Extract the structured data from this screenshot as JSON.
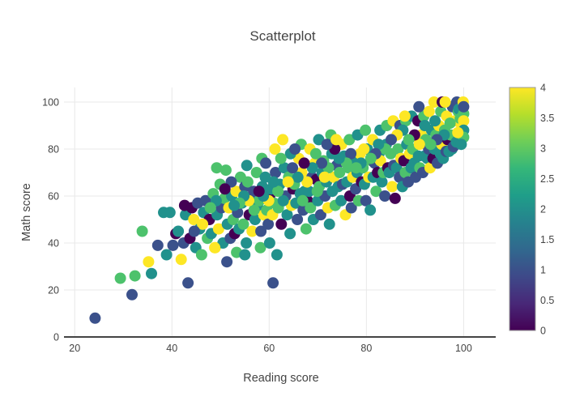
{
  "chart_data": {
    "type": "scatter",
    "title": "Scatterplot",
    "xlabel": "Reading score",
    "ylabel": "Math score",
    "xlim": [
      17.8,
      106.6
    ],
    "ylim": [
      0,
      106.2
    ],
    "xticks": [
      20,
      40,
      60,
      80,
      100
    ],
    "yticks": [
      0,
      20,
      40,
      60,
      80,
      100
    ],
    "grid": true,
    "grid_color": "#e8e8e8",
    "axis_line_color": "#444444",
    "marker_size_px": 14,
    "category_colors": [
      "#440154",
      "#3b518b",
      "#21918c",
      "#4dc26c",
      "#fde725"
    ],
    "colorbar": {
      "min": 0,
      "max": 4,
      "ticks": [
        0,
        0.5,
        1,
        1.5,
        2,
        2.5,
        3,
        3.5,
        4
      ],
      "tick_labels": [
        "0",
        "0.5",
        "1",
        "1.5",
        "2",
        "2.5",
        "3",
        "3.5",
        "4"
      ],
      "colorscale": "Viridis",
      "stops": [
        {
          "v": 0,
          "c": "#440154"
        },
        {
          "v": 0.111,
          "c": "#482878"
        },
        {
          "v": 0.222,
          "c": "#3e4989"
        },
        {
          "v": 0.333,
          "c": "#31688e"
        },
        {
          "v": 0.444,
          "c": "#26828e"
        },
        {
          "v": 0.556,
          "c": "#1f9e89"
        },
        {
          "v": 0.667,
          "c": "#35b779"
        },
        {
          "v": 0.778,
          "c": "#6ece58"
        },
        {
          "v": 0.889,
          "c": "#b5de2b"
        },
        {
          "v": 1,
          "c": "#fde725"
        }
      ]
    },
    "points": [
      [
        24.2,
        8,
        1
      ],
      [
        29.4,
        25,
        3
      ],
      [
        31.8,
        18,
        1
      ],
      [
        32.4,
        26,
        3
      ],
      [
        33.9,
        45,
        3
      ],
      [
        35.2,
        32,
        4
      ],
      [
        35.8,
        27,
        2
      ],
      [
        37.1,
        39,
        1
      ],
      [
        38.3,
        53,
        2
      ],
      [
        38.9,
        35,
        2
      ],
      [
        39.6,
        53,
        2
      ],
      [
        40.2,
        39,
        1
      ],
      [
        40.8,
        44,
        0
      ],
      [
        41.3,
        45,
        2
      ],
      [
        41.9,
        33,
        4
      ],
      [
        42.4,
        40,
        1
      ],
      [
        42.8,
        52,
        2
      ],
      [
        43.3,
        23,
        1
      ],
      [
        43.7,
        42,
        0
      ],
      [
        42.6,
        56,
        0
      ],
      [
        44.1,
        55,
        0
      ],
      [
        44.5,
        50,
        4
      ],
      [
        44.9,
        38,
        2
      ],
      [
        45.3,
        57,
        1
      ],
      [
        45.7,
        46,
        2
      ],
      [
        46.1,
        35,
        3
      ],
      [
        46.5,
        53,
        2
      ],
      [
        46.9,
        58,
        1
      ],
      [
        47.3,
        42,
        3
      ],
      [
        47.7,
        50,
        0
      ],
      [
        48.1,
        44,
        2
      ],
      [
        48.5,
        61,
        3
      ],
      [
        48.9,
        38,
        4
      ],
      [
        49.3,
        52,
        2
      ],
      [
        49.6,
        46,
        4
      ],
      [
        49.9,
        65,
        3
      ],
      [
        50.2,
        55,
        1
      ],
      [
        50.5,
        40,
        2
      ],
      [
        50.8,
        59,
        3
      ],
      [
        49.2,
        72,
        3
      ],
      [
        51.1,
        71,
        3
      ],
      [
        51.3,
        32,
        1
      ],
      [
        51.4,
        48,
        2
      ],
      [
        51.7,
        55,
        4
      ],
      [
        52.0,
        42,
        1
      ],
      [
        52.3,
        60,
        2
      ],
      [
        52.6,
        50,
        3
      ],
      [
        52.9,
        44,
        0
      ],
      [
        53.2,
        62,
        4
      ],
      [
        53.3,
        36,
        3
      ],
      [
        53.5,
        53,
        1
      ],
      [
        53.8,
        46,
        2
      ],
      [
        54.1,
        68,
        3
      ],
      [
        54.4,
        57,
        2
      ],
      [
        54.7,
        48,
        3
      ],
      [
        55.0,
        35,
        2
      ],
      [
        55.0,
        64,
        1
      ],
      [
        55.3,
        40,
        2
      ],
      [
        55.6,
        66,
        3
      ],
      [
        55.9,
        52,
        0
      ],
      [
        56.2,
        58,
        2
      ],
      [
        56.5,
        45,
        4
      ],
      [
        56.8,
        62,
        1
      ],
      [
        57.1,
        50,
        2
      ],
      [
        57.4,
        70,
        3
      ],
      [
        57.7,
        55,
        2
      ],
      [
        58.0,
        58,
        3
      ],
      [
        58.2,
        38,
        3
      ],
      [
        58.3,
        45,
        1
      ],
      [
        58.6,
        64,
        2
      ],
      [
        58.9,
        52,
        4
      ],
      [
        59.2,
        68,
        2
      ],
      [
        59.5,
        54,
        3
      ],
      [
        59.8,
        48,
        1
      ],
      [
        60.1,
        60,
        0
      ],
      [
        60.4,
        63,
        2
      ],
      [
        60.7,
        52,
        4
      ],
      [
        61.0,
        57,
        3
      ],
      [
        61.3,
        70,
        1
      ],
      [
        61.6,
        35,
        2
      ],
      [
        61.9,
        55,
        3
      ],
      [
        62.2,
        65,
        2
      ],
      [
        62.5,
        48,
        0
      ],
      [
        62.8,
        84,
        4
      ],
      [
        63.1,
        72,
        2
      ],
      [
        63.4,
        60,
        1
      ],
      [
        63.7,
        52,
        2
      ],
      [
        64.0,
        68,
        3
      ],
      [
        64.3,
        44,
        2
      ],
      [
        64.6,
        56,
        4
      ],
      [
        64.9,
        63,
        0
      ],
      [
        65.2,
        65,
        3
      ],
      [
        65.5,
        57,
        2
      ],
      [
        65.8,
        50,
        1
      ],
      [
        66.1,
        76,
        4
      ],
      [
        66.4,
        61,
        2
      ],
      [
        66.7,
        70,
        4
      ],
      [
        67.0,
        54,
        1
      ],
      [
        67.3,
        62,
        2
      ],
      [
        67.6,
        46,
        3
      ],
      [
        67.9,
        58,
        0
      ],
      [
        68.2,
        62,
        2
      ],
      [
        68.5,
        55,
        3
      ],
      [
        68.8,
        68,
        1
      ],
      [
        69.1,
        50,
        2
      ],
      [
        69.4,
        74,
        4
      ],
      [
        69.7,
        67,
        0
      ],
      [
        70.0,
        58,
        2
      ],
      [
        70.3,
        64,
        3
      ],
      [
        70.6,
        52,
        1
      ],
      [
        70.9,
        70,
        2
      ],
      [
        71.2,
        75,
        3
      ],
      [
        71.5,
        60,
        1
      ],
      [
        71.8,
        66,
        2
      ],
      [
        72.1,
        55,
        4
      ],
      [
        72.4,
        48,
        2
      ],
      [
        72.7,
        86,
        3
      ],
      [
        73.0,
        62,
        2
      ],
      [
        73.3,
        68,
        4
      ],
      [
        73.6,
        56,
        3
      ],
      [
        73.9,
        73,
        1
      ],
      [
        74.2,
        64,
        2
      ],
      [
        74.5,
        70,
        3
      ],
      [
        74.8,
        58,
        2
      ],
      [
        75.1,
        65,
        1
      ],
      [
        75.4,
        77,
        2
      ],
      [
        75.7,
        52,
        4
      ],
      [
        76.0,
        66,
        2
      ],
      [
        76.3,
        72,
        3
      ],
      [
        76.6,
        60,
        0
      ],
      [
        76.9,
        55,
        1
      ],
      [
        77.2,
        68,
        4
      ],
      [
        77.5,
        75,
        2
      ],
      [
        77.8,
        63,
        1
      ],
      [
        78.1,
        70,
        2
      ],
      [
        78.4,
        58,
        3
      ],
      [
        78.7,
        78,
        4
      ],
      [
        79.0,
        66,
        0
      ],
      [
        79.3,
        72,
        3
      ],
      [
        79.6,
        65,
        2
      ],
      [
        79.9,
        58,
        1
      ],
      [
        80.2,
        80,
        2
      ],
      [
        80.5,
        68,
        4
      ],
      [
        80.8,
        54,
        2
      ],
      [
        81.1,
        75,
        3
      ],
      [
        81.4,
        68,
        2
      ],
      [
        81.7,
        74,
        1
      ],
      [
        82.0,
        62,
        3
      ],
      [
        82.3,
        70,
        0
      ],
      [
        82.6,
        78,
        2
      ],
      [
        82.9,
        75,
        4
      ],
      [
        83.2,
        66,
        2
      ],
      [
        83.5,
        70,
        3
      ],
      [
        83.8,
        60,
        1
      ],
      [
        84.1,
        82,
        2
      ],
      [
        84.4,
        72,
        0
      ],
      [
        84.7,
        70,
        2
      ],
      [
        85.0,
        78,
        3
      ],
      [
        85.3,
        64,
        4
      ],
      [
        85.6,
        73,
        1
      ],
      [
        85.9,
        59,
        0
      ],
      [
        86.2,
        72,
        2
      ],
      [
        86.5,
        80,
        3
      ],
      [
        86.8,
        68,
        1
      ],
      [
        87.1,
        76,
        4
      ],
      [
        87.4,
        64,
        2
      ],
      [
        87.7,
        75,
        0
      ],
      [
        88.0,
        70,
        3
      ],
      [
        88.3,
        82,
        2
      ],
      [
        88.6,
        66,
        1
      ],
      [
        88.9,
        78,
        4
      ],
      [
        89.2,
        72,
        2
      ],
      [
        89.5,
        80,
        3
      ],
      [
        89.8,
        74,
        2
      ],
      [
        90.1,
        68,
        1
      ],
      [
        90.4,
        85,
        4
      ],
      [
        90.7,
        77,
        2
      ],
      [
        91.0,
        72,
        3
      ],
      [
        91.3,
        86,
        4
      ],
      [
        91.6,
        70,
        1
      ],
      [
        91.9,
        77,
        2
      ],
      [
        92.2,
        84,
        3
      ],
      [
        92.5,
        76,
        2
      ],
      [
        92.8,
        80,
        1
      ],
      [
        93.1,
        72,
        4
      ],
      [
        93.4,
        88,
        2
      ],
      [
        93.7,
        76,
        0
      ],
      [
        94.0,
        80,
        2
      ],
      [
        94.3,
        86,
        3
      ],
      [
        94.6,
        74,
        1
      ],
      [
        94.9,
        90,
        4
      ],
      [
        95.2,
        78,
        2
      ],
      [
        95.5,
        82,
        4
      ],
      [
        95.8,
        76,
        2
      ],
      [
        96.1,
        88,
        3
      ],
      [
        96.4,
        79,
        1
      ],
      [
        96.7,
        84,
        0
      ],
      [
        97.0,
        79,
        2
      ],
      [
        97.3,
        86,
        3
      ],
      [
        97.6,
        80,
        2
      ],
      [
        97.9,
        81,
        1
      ],
      [
        98.2,
        92,
        4
      ],
      [
        98.5,
        83,
        2
      ],
      [
        72.9,
        78,
        2
      ],
      [
        74.9,
        82,
        4
      ],
      [
        76.5,
        84,
        3
      ],
      [
        78.2,
        86,
        2
      ],
      [
        79.8,
        88,
        3
      ],
      [
        81.3,
        84,
        4
      ],
      [
        82.8,
        88,
        2
      ],
      [
        84.2,
        90,
        3
      ],
      [
        85.5,
        92,
        4
      ],
      [
        86.9,
        90,
        1
      ],
      [
        88.1,
        92,
        3
      ],
      [
        89.3,
        94,
        2
      ],
      [
        90.6,
        92,
        0
      ],
      [
        91.8,
        94,
        3
      ],
      [
        92.9,
        96,
        4
      ],
      [
        94.1,
        92,
        2
      ],
      [
        95.3,
        96,
        3
      ],
      [
        96.5,
        94,
        4
      ],
      [
        97.7,
        98,
        1
      ],
      [
        98.9,
        96,
        3
      ],
      [
        87.9,
        94,
        4
      ],
      [
        90.8,
        98,
        1
      ],
      [
        93.9,
        100,
        4
      ],
      [
        95.6,
        100,
        0
      ],
      [
        96.2,
        100,
        4
      ],
      [
        98.6,
        100,
        1
      ],
      [
        99.0,
        97,
        2
      ],
      [
        99.3,
        93,
        3
      ],
      [
        99.6,
        89,
        4
      ],
      [
        99.9,
        100,
        4
      ],
      [
        100,
        95,
        3
      ],
      [
        100,
        92,
        4
      ],
      [
        100,
        88,
        2
      ],
      [
        100,
        98,
        1
      ],
      [
        100,
        85,
        3
      ],
      [
        99.5,
        82,
        2
      ],
      [
        98.8,
        87,
        4
      ],
      [
        97.2,
        91,
        3
      ],
      [
        96.0,
        86,
        2
      ],
      [
        94.5,
        84,
        1
      ],
      [
        93.2,
        82,
        3
      ],
      [
        92.0,
        90,
        2
      ],
      [
        90.9,
        82,
        4
      ],
      [
        89.9,
        86,
        0
      ],
      [
        88.7,
        84,
        3
      ],
      [
        87.5,
        88,
        2
      ],
      [
        86.3,
        86,
        4
      ],
      [
        85.1,
        84,
        1
      ],
      [
        83.9,
        80,
        3
      ],
      [
        82.5,
        82,
        2
      ],
      [
        81.9,
        78,
        1
      ],
      [
        80.9,
        76,
        3
      ],
      [
        79.5,
        80,
        4
      ],
      [
        78.9,
        74,
        2
      ],
      [
        77.9,
        72,
        3
      ],
      [
        76.8,
        78,
        1
      ],
      [
        75.9,
        74,
        3
      ],
      [
        74.4,
        76,
        2
      ],
      [
        73.5,
        80,
        0
      ],
      [
        72.2,
        72,
        3
      ],
      [
        71.4,
        68,
        4
      ],
      [
        70.8,
        74,
        1
      ],
      [
        69.9,
        62,
        3
      ],
      [
        68.9,
        72,
        2
      ],
      [
        67.8,
        66,
        4
      ],
      [
        66.9,
        58,
        3
      ],
      [
        65.9,
        68,
        2
      ],
      [
        64.8,
        72,
        1
      ],
      [
        63.9,
        66,
        4
      ],
      [
        62.9,
        58,
        2
      ],
      [
        61.8,
        62,
        3
      ],
      [
        60.9,
        66,
        2
      ],
      [
        59.9,
        58,
        4
      ],
      [
        58.8,
        60,
        2
      ],
      [
        57.9,
        62,
        0
      ],
      [
        56.9,
        54,
        3
      ],
      [
        55.8,
        58,
        4
      ],
      [
        54.8,
        60,
        2
      ],
      [
        53.9,
        57,
        3
      ],
      [
        52.8,
        56,
        2
      ],
      [
        55.4,
        73,
        2
      ],
      [
        58.5,
        76,
        3
      ],
      [
        61.2,
        80,
        4
      ],
      [
        64.4,
        78,
        2
      ],
      [
        66.6,
        82,
        3
      ],
      [
        68.4,
        80,
        4
      ],
      [
        70.2,
        84,
        2
      ],
      [
        52.2,
        66,
        1
      ],
      [
        49.1,
        58,
        2
      ],
      [
        46.3,
        48,
        4
      ],
      [
        44.6,
        45,
        1
      ],
      [
        47.9,
        55,
        3
      ],
      [
        50.9,
        63,
        0
      ],
      [
        59.3,
        74,
        1
      ],
      [
        62.4,
        76,
        3
      ],
      [
        65.3,
        80,
        1
      ],
      [
        67.2,
        74,
        0
      ],
      [
        69.6,
        78,
        3
      ],
      [
        71.9,
        82,
        1
      ],
      [
        73.8,
        84,
        4
      ],
      [
        60.8,
        23,
        1
      ],
      [
        48.8,
        38,
        4
      ],
      [
        60.1,
        40,
        2
      ]
    ]
  }
}
